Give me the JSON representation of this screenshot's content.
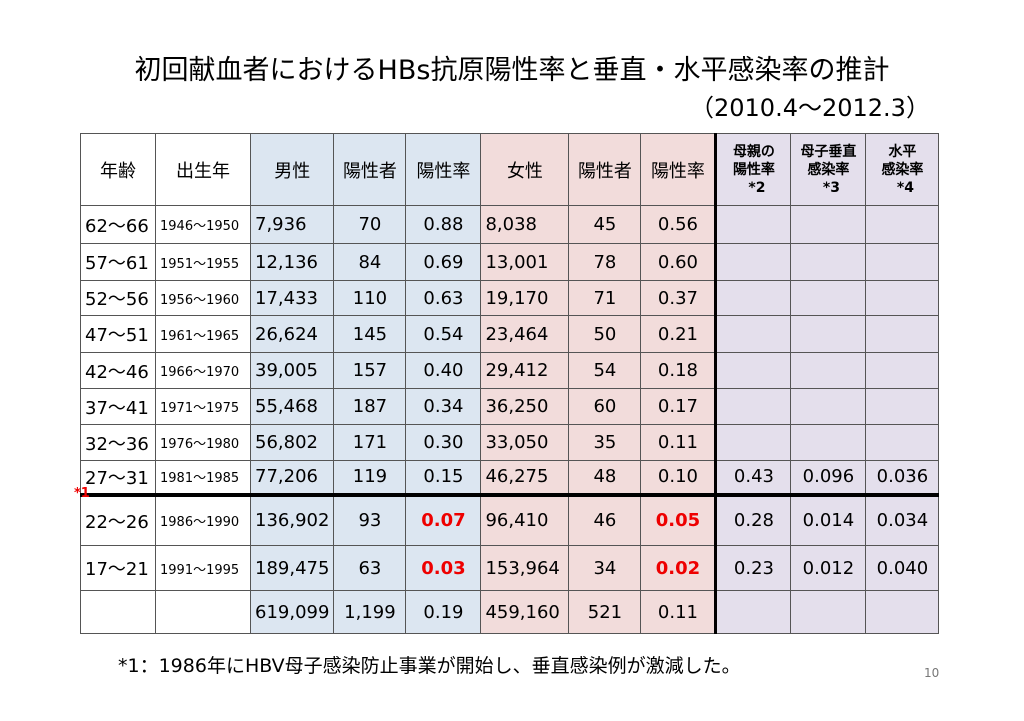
{
  "header": {
    "title": "初回献血者におけるHBs抗原陽性率と垂直・水平感染率の推計",
    "subtitle": "（2010.4～2012.3）"
  },
  "table": {
    "columns": [
      {
        "lines": [
          "年齢"
        ]
      },
      {
        "lines": [
          "出生年"
        ]
      },
      {
        "lines": [
          "男性"
        ]
      },
      {
        "lines": [
          "陽性者"
        ]
      },
      {
        "lines": [
          "陽性率"
        ]
      },
      {
        "lines": [
          "女性"
        ]
      },
      {
        "lines": [
          "陽性者"
        ]
      },
      {
        "lines": [
          "陽性率"
        ]
      },
      {
        "lines": [
          "母親の",
          "陽性率"
        ],
        "note": "*2"
      },
      {
        "lines": [
          "母子垂直",
          "感染率"
        ],
        "note": "*3"
      },
      {
        "lines": [
          "水平",
          "感染率"
        ],
        "note": "*4"
      }
    ],
    "rows": [
      [
        "62～66",
        "1946～1950",
        "7,936",
        "70",
        "0.88",
        "8,038",
        "45",
        "0.56",
        null,
        null,
        null
      ],
      [
        "57～61",
        "1951～1955",
        "12,136",
        "84",
        "0.69",
        "13,001",
        "78",
        "0.60",
        null,
        null,
        null
      ],
      [
        "52～56",
        "1956～1960",
        "17,433",
        "110",
        "0.63",
        "19,170",
        "71",
        "0.37",
        null,
        null,
        null
      ],
      [
        "47～51",
        "1961～1965",
        "26,624",
        "145",
        "0.54",
        "23,464",
        "50",
        "0.21",
        null,
        null,
        null
      ],
      [
        "42～46",
        "1966～1970",
        "39,005",
        "157",
        "0.40",
        "29,412",
        "54",
        "0.18",
        null,
        null,
        null
      ],
      [
        "37～41",
        "1971～1975",
        "55,468",
        "187",
        "0.34",
        "36,250",
        "60",
        "0.17",
        null,
        null,
        null
      ],
      [
        "32～36",
        "1976～1980",
        "56,802",
        "171",
        "0.30",
        "33,050",
        "35",
        "0.11",
        null,
        null,
        null
      ],
      [
        "27～31",
        "1981～1985",
        "77,206",
        "119",
        "0.15",
        "46,275",
        "48",
        "0.10",
        "0.43",
        "0.096",
        "0.036"
      ],
      [
        "22～26",
        "1986～1990",
        "136,902",
        "93",
        "0.07",
        "96,410",
        "46",
        "0.05",
        "0.28",
        "0.014",
        "0.034"
      ],
      [
        "17～21",
        "1991～1995",
        "189,475",
        "63",
        "0.03",
        "153,964",
        "34",
        "0.02",
        "0.23",
        "0.012",
        "0.040"
      ],
      [
        null,
        null,
        "619,099",
        "1,199",
        "0.19",
        "459,160",
        "521",
        "0.11",
        null,
        null,
        null
      ]
    ],
    "split_note": "*1"
  },
  "footnote": "*1：1986年にHBV母子感染防止事業が開始し、垂直感染例が激減した。",
  "page_number": "10"
}
